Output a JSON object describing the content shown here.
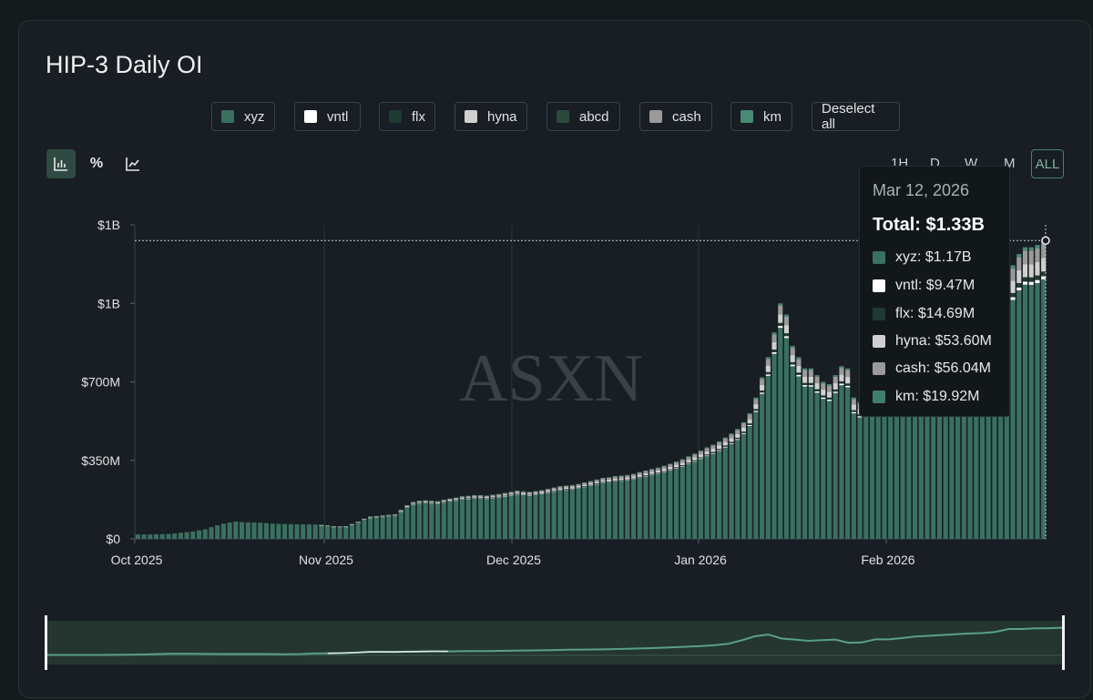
{
  "title": "HIP-3 Daily OI",
  "legend": [
    {
      "label": "xyz",
      "color": "#3a7060"
    },
    {
      "label": "vntl",
      "color": "#ffffff"
    },
    {
      "label": "flx",
      "color": "#1f3a30"
    },
    {
      "label": "hyna",
      "color": "#d0d0d0"
    },
    {
      "label": "abcd",
      "color": "#2a4a3e"
    },
    {
      "label": "cash",
      "color": "#9a9a9a"
    },
    {
      "label": "km",
      "color": "#4a8a74"
    }
  ],
  "deselect_label": "Deselect all",
  "chart_types": [
    "bar-chart-icon",
    "percent-icon",
    "line-chart-icon"
  ],
  "chart_type_percent_label": "%",
  "ranges": [
    "1H",
    "D",
    "W",
    "M",
    "ALL"
  ],
  "watermark": "ASXN",
  "tooltip": {
    "date": "Mar 12, 2026",
    "total": "Total: $1.33B",
    "rows": [
      {
        "label": "xyz: $1.17B",
        "color": "#3a7060"
      },
      {
        "label": "vntl: $9.47M",
        "color": "#ffffff"
      },
      {
        "label": "flx: $14.69M",
        "color": "#1f3a30"
      },
      {
        "label": "hyna: $53.60M",
        "color": "#d0d0d0"
      },
      {
        "label": "cash: $56.04M",
        "color": "#9a9a9a"
      },
      {
        "label": "km: $19.92M",
        "color": "#3f7f6a"
      }
    ]
  },
  "chart_data": {
    "type": "bar",
    "stacked": true,
    "y_tick_labels": [
      "$0",
      "$350M",
      "$700M",
      "$1B",
      "$1B"
    ],
    "y_ticks": [
      0,
      350,
      700,
      1050,
      1400
    ],
    "ylim": [
      0,
      1400
    ],
    "x_tick_labels": [
      "Oct 2025",
      "Nov 2025",
      "Dec 2025",
      "Jan 2026",
      "Feb 2026"
    ],
    "x_start": "Oct 2025",
    "x_end": "Mar 12, 2026",
    "grid": {
      "vertical": true,
      "horizontal": false
    },
    "series_names": [
      "xyz",
      "vntl",
      "flx",
      "hyna",
      "abcd",
      "cash",
      "km"
    ],
    "total_values": [
      20,
      20,
      20,
      21,
      21,
      22,
      24,
      27,
      30,
      33,
      38,
      43,
      52,
      60,
      68,
      73,
      77,
      75,
      74,
      73,
      72,
      70,
      68,
      67,
      66,
      66,
      65,
      65,
      65,
      64,
      63,
      60,
      57,
      56,
      57,
      67,
      77,
      90,
      100,
      102,
      105,
      108,
      110,
      130,
      150,
      165,
      170,
      172,
      170,
      168,
      175,
      180,
      184,
      190,
      192,
      195,
      195,
      193,
      197,
      200,
      205,
      210,
      215,
      212,
      210,
      213,
      217,
      223,
      229,
      235,
      238,
      240,
      245,
      252,
      258,
      265,
      272,
      275,
      280,
      282,
      285,
      290,
      298,
      305,
      312,
      318,
      326,
      335,
      345,
      355,
      368,
      380,
      394,
      408,
      420,
      435,
      452,
      470,
      490,
      520,
      560,
      630,
      720,
      810,
      920,
      1050,
      1000,
      860,
      810,
      760,
      760,
      730,
      700,
      690,
      730,
      770,
      760,
      630,
      610,
      640,
      620,
      700,
      770,
      760,
      770,
      800,
      830,
      870,
      910,
      920,
      940,
      960,
      980,
      1000,
      1020,
      1100,
      1050,
      1040,
      1070,
      1160,
      1130,
      1250,
      1270,
      1220,
      1270,
      1300,
      1300,
      1310,
      1330
    ]
  },
  "navigator": {
    "values": [
      20,
      20,
      21,
      22,
      24,
      27,
      33,
      43,
      60,
      73,
      75,
      73,
      70,
      67,
      66,
      65,
      64,
      60,
      56,
      67,
      90,
      102,
      108,
      130,
      165,
      172,
      168,
      180,
      190,
      195,
      193,
      200,
      210,
      212,
      217,
      229,
      238,
      245,
      258,
      272,
      280,
      285,
      298,
      312,
      326,
      345,
      368,
      394,
      420,
      452,
      490,
      560,
      720,
      920,
      1000,
      810,
      760,
      700,
      730,
      760,
      610,
      620,
      770,
      770,
      830,
      910,
      940,
      980,
      1020,
      1050,
      1070,
      1130,
      1270,
      1270,
      1300,
      1310,
      1330
    ]
  }
}
